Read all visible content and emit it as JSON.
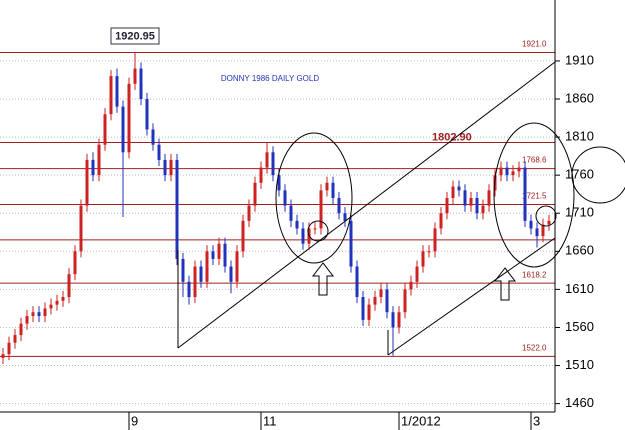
{
  "chart_data": {
    "type": "candlestick",
    "title": "DONNY 1986 DAILY GOLD",
    "annotation": "1920.95",
    "categories": [
      null,
      null,
      null,
      null,
      null,
      null,
      null,
      null,
      null,
      null,
      null,
      null,
      null,
      null,
      null,
      null,
      null,
      null,
      null,
      null,
      null,
      "9",
      null,
      null,
      null,
      null,
      null,
      null,
      null,
      null,
      null,
      null,
      null,
      null,
      null,
      null,
      null,
      null,
      null,
      null,
      null,
      null,
      null,
      "11",
      null,
      null,
      null,
      null,
      null,
      null,
      null,
      null,
      null,
      null,
      null,
      null,
      null,
      null,
      null,
      null,
      null,
      null,
      null,
      null,
      null,
      null,
      "1/2012",
      null,
      null,
      null,
      null,
      null,
      null,
      null,
      null,
      null,
      null,
      null,
      null,
      null,
      null,
      null,
      null,
      null,
      null,
      null,
      null,
      null,
      "3",
      null,
      null,
      null
    ],
    "open": [
      1520,
      1525,
      1540,
      1550,
      1565,
      1575,
      1580,
      1575,
      1585,
      1590,
      1595,
      1600,
      1630,
      1660,
      1720,
      1780,
      1760,
      1800,
      1840,
      1890,
      1850,
      1790,
      1880,
      1900,
      1860,
      1820,
      1800,
      1780,
      1760,
      1780,
      1650,
      1620,
      1600,
      1640,
      1620,
      1660,
      1650,
      1670,
      1640,
      1620,
      1660,
      1700,
      1720,
      1750,
      1770,
      1790,
      1760,
      1740,
      1720,
      1700,
      1690,
      1670,
      1690,
      1690,
      1740,
      1750,
      1730,
      1710,
      1700,
      1640,
      1600,
      1570,
      1590,
      1600,
      1610,
      1580,
      1560,
      1580,
      1610,
      1620,
      1640,
      1660,
      1660,
      1690,
      1710,
      1730,
      1745,
      1740,
      1720,
      1730,
      1710,
      1720,
      1740,
      1760,
      1770,
      1760,
      1765,
      1770,
      1700,
      1690,
      1680,
      1695
    ],
    "high": [
      1533,
      1548,
      1558,
      1573,
      1583,
      1588,
      1588,
      1593,
      1598,
      1603,
      1608,
      1638,
      1668,
      1728,
      1788,
      1790,
      1808,
      1848,
      1898,
      1900,
      1858,
      1888,
      1921,
      1908,
      1868,
      1828,
      1808,
      1788,
      1788,
      1788,
      1658,
      1628,
      1648,
      1648,
      1668,
      1668,
      1678,
      1678,
      1648,
      1668,
      1708,
      1728,
      1758,
      1778,
      1803,
      1798,
      1768,
      1748,
      1728,
      1708,
      1698,
      1698,
      1698,
      1748,
      1758,
      1758,
      1738,
      1718,
      1708,
      1648,
      1608,
      1598,
      1608,
      1618,
      1618,
      1588,
      1588,
      1618,
      1628,
      1648,
      1668,
      1668,
      1698,
      1718,
      1738,
      1753,
      1753,
      1748,
      1738,
      1738,
      1728,
      1748,
      1768,
      1778,
      1778,
      1773,
      1778,
      1778,
      1708,
      1698,
      1703,
      1708
    ],
    "low": [
      1512,
      1517,
      1532,
      1542,
      1557,
      1567,
      1567,
      1567,
      1577,
      1582,
      1587,
      1592,
      1622,
      1652,
      1712,
      1752,
      1752,
      1792,
      1832,
      1842,
      1705,
      1782,
      1872,
      1852,
      1812,
      1792,
      1772,
      1752,
      1752,
      1642,
      1600,
      1590,
      1592,
      1612,
      1612,
      1642,
      1642,
      1632,
      1605,
      1612,
      1652,
      1692,
      1712,
      1742,
      1762,
      1752,
      1732,
      1712,
      1692,
      1682,
      1662,
      1662,
      1682,
      1682,
      1732,
      1722,
      1702,
      1692,
      1632,
      1592,
      1562,
      1562,
      1582,
      1592,
      1572,
      1523,
      1552,
      1572,
      1602,
      1612,
      1632,
      1652,
      1652,
      1682,
      1702,
      1722,
      1732,
      1712,
      1712,
      1702,
      1702,
      1712,
      1732,
      1752,
      1752,
      1752,
      1757,
      1692,
      1682,
      1665,
      1672,
      1687
    ],
    "close": [
      1525,
      1540,
      1550,
      1565,
      1575,
      1580,
      1575,
      1585,
      1590,
      1595,
      1600,
      1630,
      1660,
      1720,
      1780,
      1760,
      1800,
      1840,
      1890,
      1850,
      1790,
      1880,
      1900,
      1860,
      1820,
      1800,
      1780,
      1760,
      1780,
      1650,
      1620,
      1600,
      1640,
      1620,
      1660,
      1650,
      1670,
      1640,
      1620,
      1660,
      1700,
      1720,
      1750,
      1770,
      1790,
      1760,
      1740,
      1720,
      1700,
      1690,
      1670,
      1690,
      1690,
      1740,
      1750,
      1730,
      1710,
      1700,
      1640,
      1600,
      1570,
      1590,
      1600,
      1610,
      1580,
      1560,
      1580,
      1610,
      1620,
      1640,
      1660,
      1660,
      1690,
      1710,
      1730,
      1745,
      1740,
      1720,
      1730,
      1710,
      1720,
      1740,
      1760,
      1770,
      1760,
      1765,
      1770,
      1700,
      1690,
      1680,
      1695,
      1700
    ],
    "up_color": "#cc2222",
    "down_color": "#2233bb",
    "levels": [
      {
        "value": 1921.0,
        "label": "1921.0"
      },
      {
        "value": 1802.9,
        "label": "1802.90"
      },
      {
        "value": 1768.6,
        "label": "1768.6"
      },
      {
        "value": 1721.5,
        "label": "1721.5"
      },
      {
        "value": 1675
      },
      {
        "value": 1618.2,
        "label": "1618.2"
      },
      {
        "value": 1522.0,
        "label": "1522.0"
      }
    ],
    "level_color": "#a02020",
    "ylim": [
      1449,
      1990
    ],
    "yticks": [
      1460,
      1510,
      1560,
      1610,
      1660,
      1710,
      1760,
      1810,
      1860,
      1910
    ],
    "grid": true
  }
}
